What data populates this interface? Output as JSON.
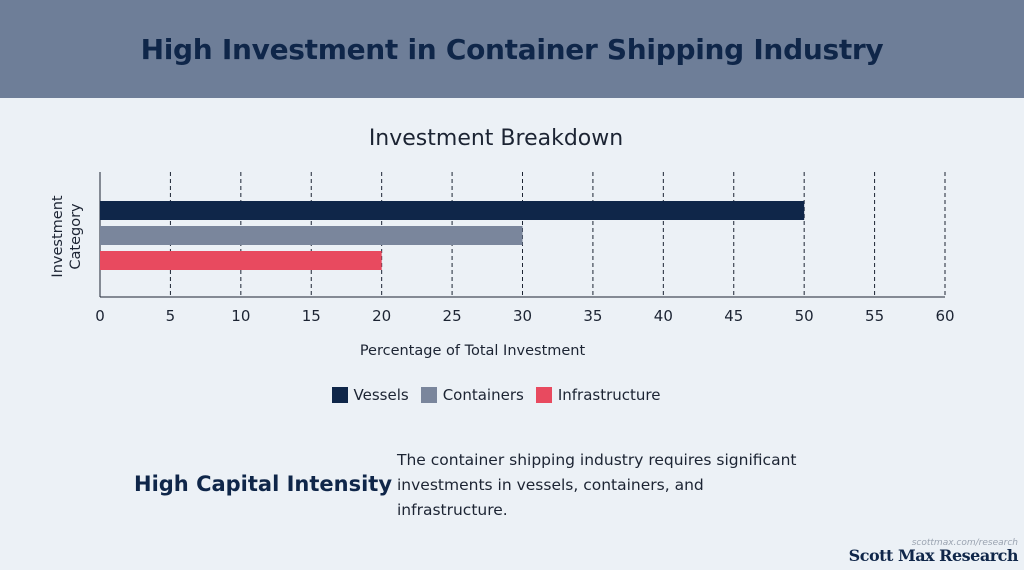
{
  "header": {
    "title": "High Investment in Container Shipping Industry"
  },
  "colors": {
    "vessels": "#0f2649",
    "containers": "#7a869c",
    "infrastructure": "#e84a5f"
  },
  "chart_data": {
    "type": "bar",
    "orientation": "horizontal",
    "title": "Investment Breakdown",
    "xlabel": "Percentage of Total Investment",
    "ylabel": "Investment Category",
    "xlim": [
      0,
      60
    ],
    "xticks": [
      0,
      5,
      10,
      15,
      20,
      25,
      30,
      35,
      40,
      45,
      50,
      55,
      60
    ],
    "grid": true,
    "legend_position": "bottom",
    "series": [
      {
        "name": "Vessels",
        "value": 50,
        "color": "#0f2649"
      },
      {
        "name": "Containers",
        "value": 30,
        "color": "#7a869c"
      },
      {
        "name": "Infrastructure",
        "value": 20,
        "color": "#e84a5f"
      }
    ]
  },
  "highlight": {
    "title": "High Capital Intensity",
    "text": "The container shipping industry requires significant investments in vessels, containers, and infrastructure."
  },
  "footer": {
    "url": "scottmax.com/research",
    "brand": "Scott Max Research"
  }
}
